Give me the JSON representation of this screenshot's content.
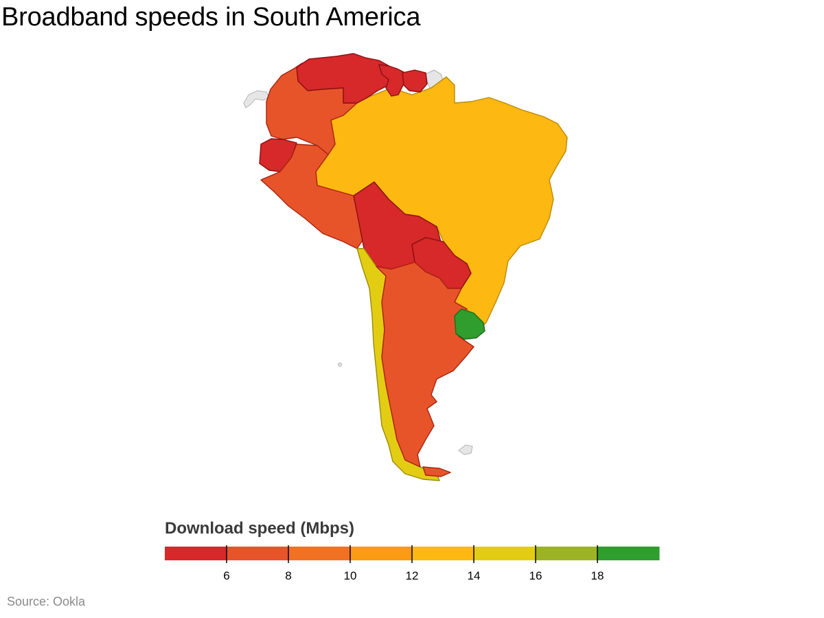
{
  "header": {
    "title": "Broadband speeds in South America"
  },
  "colors": {
    "band_4_6": "#d7282a",
    "band_6_8": "#e8542a",
    "band_8_10": "#f07123",
    "band_10_12": "#fb9a13",
    "band_12_14": "#fdb811",
    "band_14_16": "#e3cd13",
    "band_16_18": "#9cb326",
    "band_18_20": "#2f9e2e",
    "no_data": "#e6e6e6"
  },
  "map": {
    "regions": [
      {
        "name": "Colombia",
        "band": "6-8",
        "color": "#e8542a"
      },
      {
        "name": "Venezuela",
        "band": "4-6",
        "color": "#d7282a"
      },
      {
        "name": "Guyana",
        "band": "4-6",
        "color": "#d7282a"
      },
      {
        "name": "Suriname",
        "band": "4-6",
        "color": "#d7282a"
      },
      {
        "name": "French Guiana",
        "band": "no data",
        "color": "#e6e6e6"
      },
      {
        "name": "Ecuador",
        "band": "4-6",
        "color": "#d7282a"
      },
      {
        "name": "Peru",
        "band": "6-8",
        "color": "#e8542a"
      },
      {
        "name": "Brazil",
        "band": "12-14",
        "color": "#fdb811"
      },
      {
        "name": "Bolivia",
        "band": "4-6",
        "color": "#d7282a"
      },
      {
        "name": "Paraguay",
        "band": "4-6",
        "color": "#d7282a"
      },
      {
        "name": "Chile",
        "band": "14-16",
        "color": "#e3cd13"
      },
      {
        "name": "Argentina",
        "band": "6-8",
        "color": "#e8542a"
      },
      {
        "name": "Uruguay",
        "band": "18-20",
        "color": "#2f9e2e"
      },
      {
        "name": "Falkland Islands",
        "band": "no data",
        "color": "#e6e6e6"
      }
    ]
  },
  "legend": {
    "title": "Download speed (Mbps)",
    "min": 4,
    "max": 20,
    "ticks": [
      "6",
      "8",
      "10",
      "12",
      "14",
      "16",
      "18"
    ],
    "tick_values": [
      6,
      8,
      10,
      12,
      14,
      16,
      18
    ],
    "bands": [
      {
        "from": 4,
        "to": 6,
        "color": "#d7282a"
      },
      {
        "from": 6,
        "to": 8,
        "color": "#e8542a"
      },
      {
        "from": 8,
        "to": 10,
        "color": "#f07123"
      },
      {
        "from": 10,
        "to": 12,
        "color": "#fb9a13"
      },
      {
        "from": 12,
        "to": 14,
        "color": "#fdb811"
      },
      {
        "from": 14,
        "to": 16,
        "color": "#e3cd13"
      },
      {
        "from": 16,
        "to": 18,
        "color": "#9cb326"
      },
      {
        "from": 18,
        "to": 20,
        "color": "#2f9e2e"
      }
    ]
  },
  "footer": {
    "source": "Source: Ookla"
  }
}
